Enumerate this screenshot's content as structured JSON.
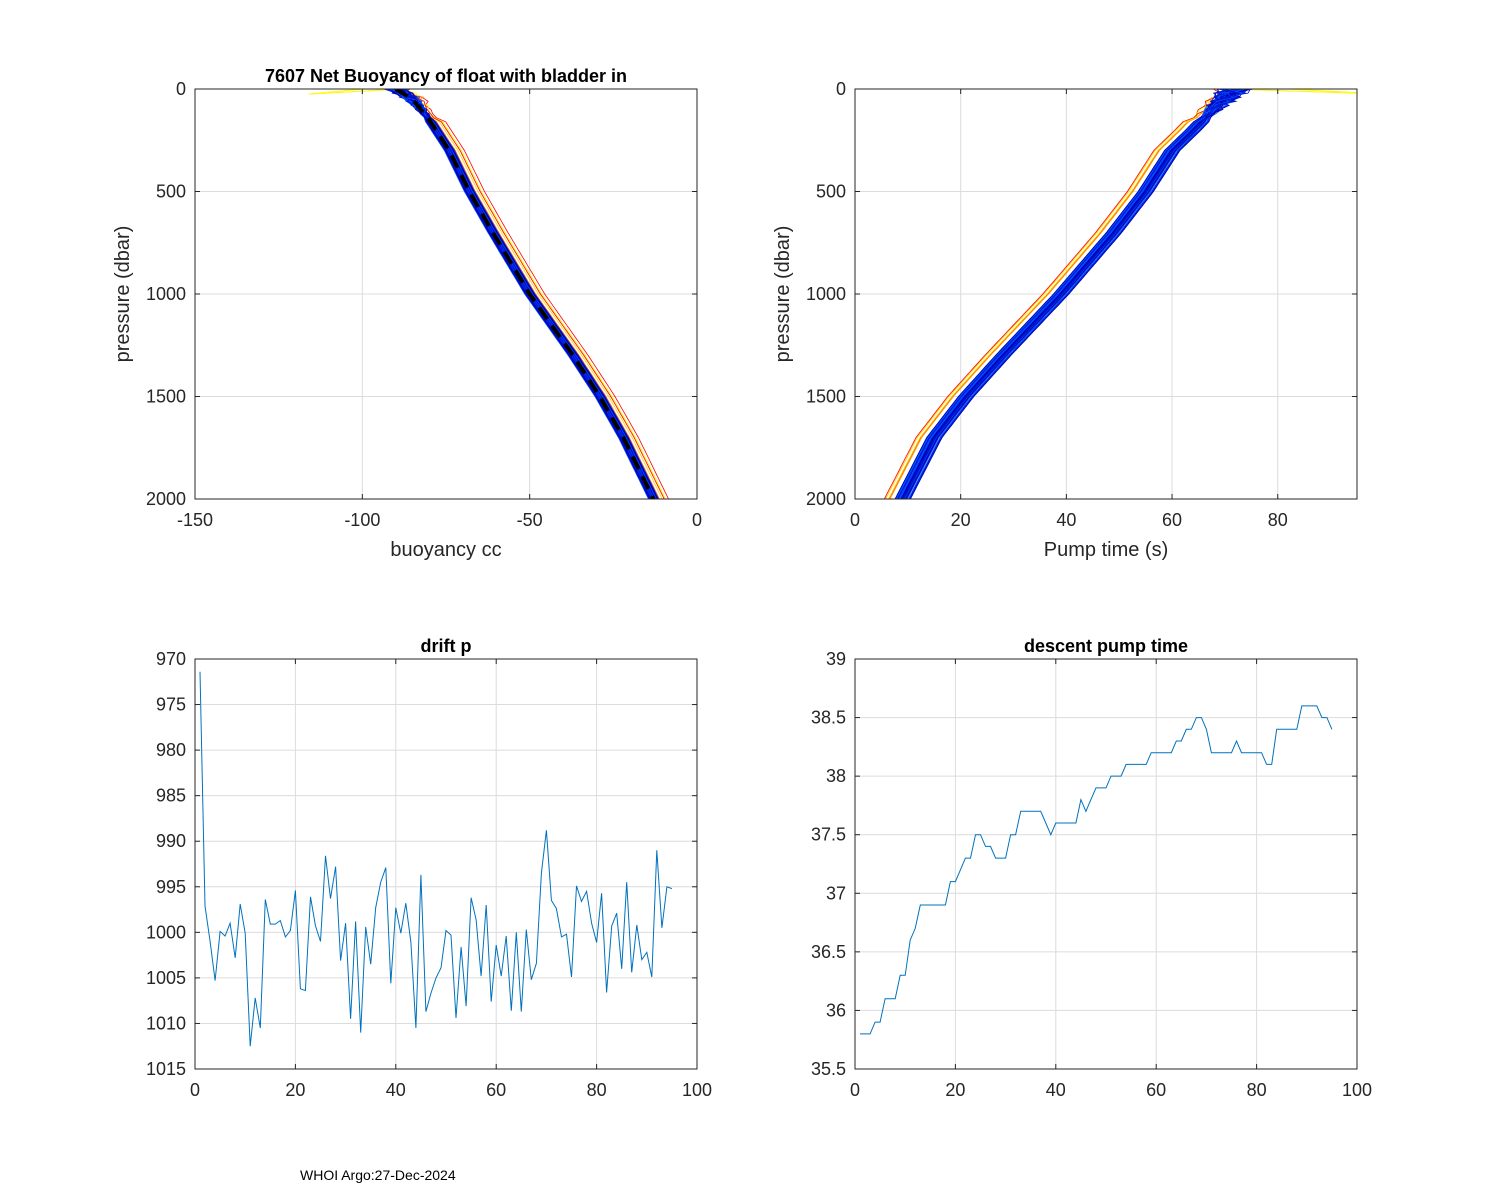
{
  "footer": {
    "text": "WHOI Argo:27-Dec-2024"
  },
  "colors": {
    "line": "#0072BD",
    "grid": "#dcdcdc",
    "axis": "#262626",
    "mean": "#000000",
    "profiles_hot": [
      "#ff0000",
      "#ff5a00",
      "#ff9a00",
      "#ffd200",
      "#ffff00"
    ],
    "profiles_cool": [
      "#00d2c8",
      "#00a0ff",
      "#0050ff",
      "#0014d2",
      "#0000b4",
      "#3ca0c8"
    ]
  },
  "chart_data": [
    {
      "id": "buoyancy",
      "type": "line",
      "title": "7607 Net Buoyancy of float with bladder in",
      "xlabel": "buoyancy cc",
      "ylabel": "pressure (dbar)",
      "xlim": [
        -150,
        0
      ],
      "ylim": [
        0,
        2000
      ],
      "y_reversed": true,
      "grid": true,
      "xticks": [
        -150,
        -100,
        -50,
        0
      ],
      "yticks": [
        0,
        500,
        1000,
        1500,
        2000
      ],
      "profile_count": 95,
      "mean_profile": {
        "p": [
          0,
          50,
          150,
          300,
          500,
          700,
          1000,
          1300,
          1500,
          1700,
          2000
        ],
        "x": [
          -90,
          -85,
          -80,
          -74,
          -68,
          -61,
          -50,
          -37,
          -29,
          -22,
          -13
        ]
      }
    },
    {
      "id": "pump",
      "type": "line",
      "xlabel": "Pump time (s)",
      "ylabel": "pressure (dbar)",
      "xlim": [
        0,
        95
      ],
      "ylim": [
        0,
        2000
      ],
      "y_reversed": true,
      "grid": true,
      "xticks": [
        0,
        20,
        40,
        60,
        80
      ],
      "yticks": [
        0,
        500,
        1000,
        1500,
        2000
      ],
      "profile_count": 95,
      "mean_profile": {
        "p": [
          0,
          50,
          120,
          200,
          300,
          500,
          700,
          1000,
          1300,
          1500,
          1700,
          2000
        ],
        "x": [
          72,
          70,
          67,
          64,
          60,
          55,
          49,
          39,
          28,
          21,
          15,
          9
        ]
      }
    },
    {
      "id": "drift",
      "type": "line",
      "title": "drift p",
      "xlabel": "",
      "ylabel": "",
      "xlim": [
        0,
        100
      ],
      "ylim": [
        970,
        1015
      ],
      "y_reversed": true,
      "grid": true,
      "xticks": [
        0,
        20,
        40,
        60,
        80,
        100
      ],
      "yticks": [
        970,
        975,
        980,
        985,
        990,
        995,
        1000,
        1005,
        1010,
        1015
      ],
      "x": [
        1,
        2,
        3,
        4,
        5,
        6,
        7,
        8,
        9,
        10,
        11,
        12,
        13,
        14,
        15,
        16,
        17,
        18,
        19,
        20,
        21,
        22,
        23,
        24,
        25,
        26,
        27,
        28,
        29,
        30,
        31,
        32,
        33,
        34,
        35,
        36,
        37,
        38,
        39,
        40,
        41,
        42,
        43,
        44,
        45,
        46,
        47,
        48,
        49,
        50,
        51,
        52,
        53,
        54,
        55,
        56,
        57,
        58,
        59,
        60,
        61,
        62,
        63,
        64,
        65,
        66,
        67,
        68,
        69,
        70,
        71,
        72,
        73,
        74,
        75,
        76,
        77,
        78,
        79,
        80,
        81,
        82,
        83,
        84,
        85,
        86,
        87,
        88,
        89,
        90,
        91,
        92,
        93,
        94,
        95
      ],
      "values": [
        971.4,
        997.1,
        1001.0,
        1005.3,
        999.9,
        1000.4,
        999.0,
        1002.8,
        996.9,
        1000.1,
        1012.5,
        1007.2,
        1010.5,
        996.4,
        999.1,
        999.1,
        998.7,
        1000.5,
        999.8,
        995.4,
        1006.2,
        1006.4,
        996.1,
        999.3,
        1001.0,
        991.6,
        996.3,
        992.8,
        1003.1,
        999.0,
        1009.5,
        998.8,
        1011.0,
        999.4,
        1003.5,
        997.3,
        994.5,
        992.9,
        1005.6,
        997.3,
        1000.1,
        996.8,
        1001.1,
        1010.5,
        993.7,
        1008.7,
        1006.7,
        1005.0,
        1003.9,
        999.8,
        1000.3,
        1009.4,
        1001.6,
        1008.1,
        996.2,
        998.6,
        1004.8,
        997.0,
        1007.6,
        1001.4,
        1004.8,
        1000.4,
        1008.6,
        1000.0,
        1008.7,
        999.7,
        1005.2,
        1003.4,
        993.5,
        988.8,
        996.5,
        997.4,
        1000.5,
        1000.2,
        1004.9,
        994.9,
        996.6,
        995.5,
        999.0,
        1001.1,
        995.7,
        1006.6,
        999.3,
        997.9,
        1004.0,
        994.5,
        1004.4,
        999.2,
        1003.0,
        1002.2,
        1004.9,
        991.0,
        999.5,
        995.0,
        995.2
      ]
    },
    {
      "id": "descent",
      "type": "line",
      "title": "descent pump time",
      "xlabel": "",
      "ylabel": "",
      "xlim": [
        0,
        100
      ],
      "ylim": [
        35.5,
        39
      ],
      "grid": true,
      "xticks": [
        0,
        20,
        40,
        60,
        80,
        100
      ],
      "yticks": [
        35.5,
        36,
        36.5,
        37,
        37.5,
        38,
        38.5,
        39
      ],
      "x": [
        1,
        2,
        3,
        4,
        5,
        6,
        7,
        8,
        9,
        10,
        11,
        12,
        13,
        14,
        15,
        16,
        17,
        18,
        19,
        20,
        21,
        22,
        23,
        24,
        25,
        26,
        27,
        28,
        29,
        30,
        31,
        32,
        33,
        34,
        35,
        36,
        37,
        38,
        39,
        40,
        41,
        42,
        43,
        44,
        45,
        46,
        47,
        48,
        49,
        50,
        51,
        52,
        53,
        54,
        55,
        56,
        57,
        58,
        59,
        60,
        61,
        62,
        63,
        64,
        65,
        66,
        67,
        68,
        69,
        70,
        71,
        72,
        73,
        74,
        75,
        76,
        77,
        78,
        79,
        80,
        81,
        82,
        83,
        84,
        85,
        86,
        87,
        88,
        89,
        90,
        91,
        92,
        93,
        94,
        95
      ],
      "values": [
        35.8,
        35.8,
        35.8,
        35.9,
        35.9,
        36.1,
        36.1,
        36.1,
        36.3,
        36.3,
        36.6,
        36.7,
        36.9,
        36.9,
        36.9,
        36.9,
        36.9,
        36.9,
        37.1,
        37.1,
        37.2,
        37.3,
        37.3,
        37.5,
        37.5,
        37.4,
        37.4,
        37.3,
        37.3,
        37.3,
        37.5,
        37.5,
        37.7,
        37.7,
        37.7,
        37.7,
        37.7,
        37.6,
        37.5,
        37.6,
        37.6,
        37.6,
        37.6,
        37.6,
        37.8,
        37.7,
        37.8,
        37.9,
        37.9,
        37.9,
        38.0,
        38.0,
        38.0,
        38.1,
        38.1,
        38.1,
        38.1,
        38.1,
        38.2,
        38.2,
        38.2,
        38.2,
        38.2,
        38.3,
        38.3,
        38.4,
        38.4,
        38.5,
        38.5,
        38.4,
        38.2,
        38.2,
        38.2,
        38.2,
        38.2,
        38.3,
        38.2,
        38.2,
        38.2,
        38.2,
        38.2,
        38.1,
        38.1,
        38.4,
        38.4,
        38.4,
        38.4,
        38.4,
        38.6,
        38.6,
        38.6,
        38.6,
        38.5,
        38.5,
        38.4
      ]
    }
  ]
}
